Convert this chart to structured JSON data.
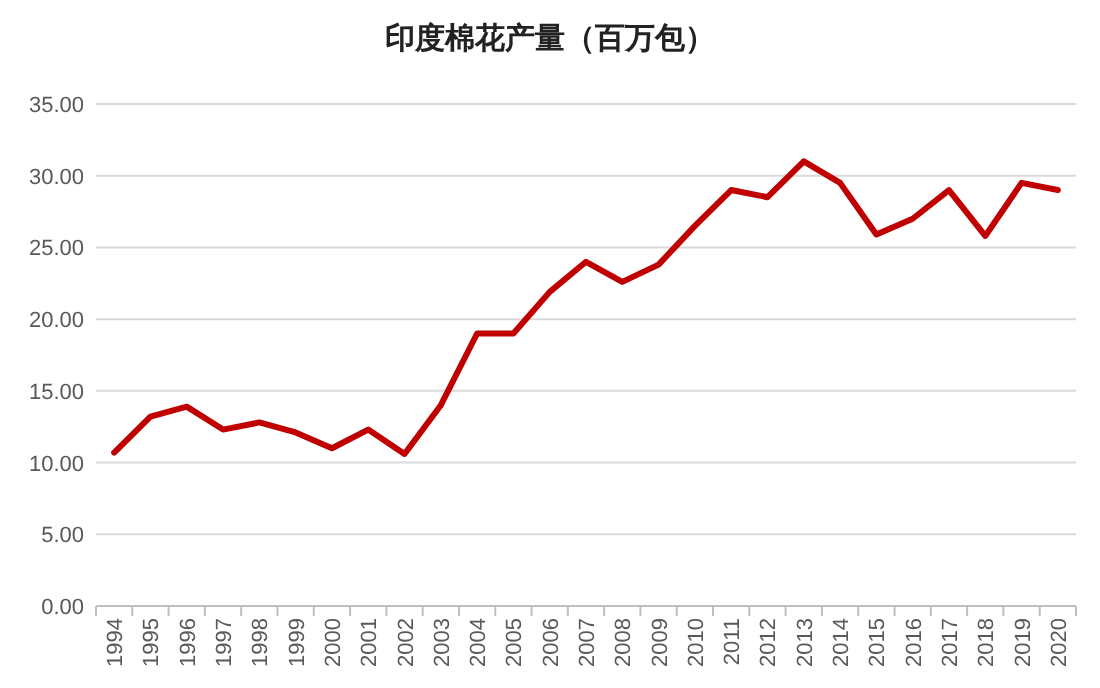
{
  "chart_data": {
    "type": "line",
    "title": "印度棉花产量（百万包）",
    "categories": [
      "1994",
      "1995",
      "1996",
      "1997",
      "1998",
      "1999",
      "2000",
      "2001",
      "2002",
      "2003",
      "2004",
      "2005",
      "2006",
      "2007",
      "2008",
      "2009",
      "2010",
      "2011",
      "2012",
      "2013",
      "2014",
      "2015",
      "2016",
      "2017",
      "2018",
      "2019",
      "2020"
    ],
    "series": [
      {
        "color": "#c00000",
        "values": [
          10.7,
          13.2,
          13.9,
          12.3,
          12.8,
          12.1,
          11.0,
          12.3,
          10.6,
          14.0,
          19.0,
          19.0,
          21.9,
          24.0,
          22.6,
          23.8,
          26.5,
          29.0,
          28.5,
          31.0,
          29.5,
          25.9,
          27.0,
          29.0,
          25.8,
          29.5,
          29.0
        ]
      }
    ],
    "ylim": [
      0,
      35
    ],
    "yticks": [
      {
        "value": 0,
        "label": "0.00"
      },
      {
        "value": 5,
        "label": "5.00"
      },
      {
        "value": 10,
        "label": "10.00"
      },
      {
        "value": 15,
        "label": "15.00"
      },
      {
        "value": 20,
        "label": "20.00"
      },
      {
        "value": 25,
        "label": "25.00"
      },
      {
        "value": 30,
        "label": "30.00"
      },
      {
        "value": 35,
        "label": "35.00"
      }
    ],
    "grid": "y",
    "marker": "none",
    "line_style": "solid"
  }
}
